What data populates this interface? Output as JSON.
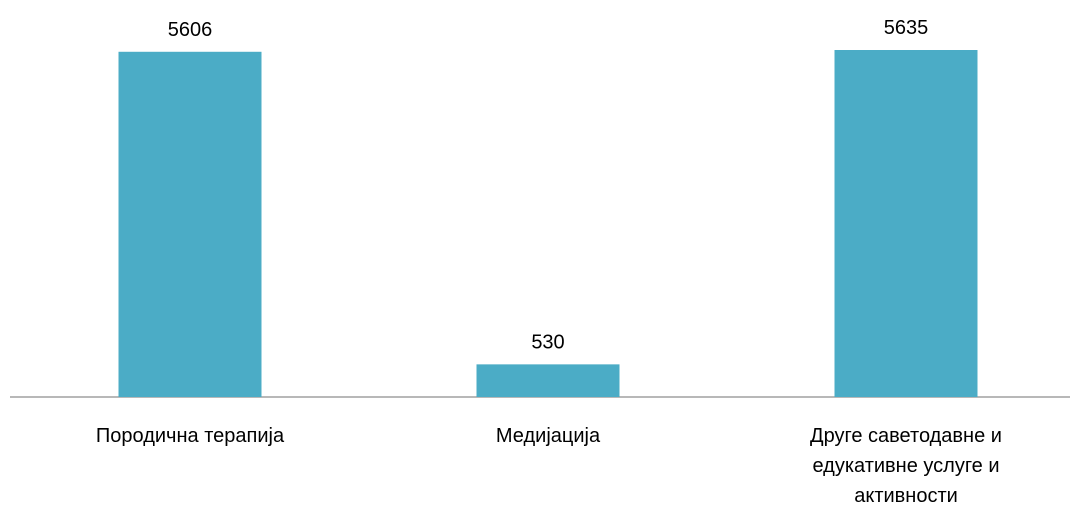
{
  "chart_data": {
    "type": "bar",
    "categories": [
      "Породична терапија",
      "Медијација",
      "Друге саветодавне и едукативне услуге и активности"
    ],
    "values": [
      5606,
      530,
      5635
    ],
    "color": "#4bacc6"
  }
}
